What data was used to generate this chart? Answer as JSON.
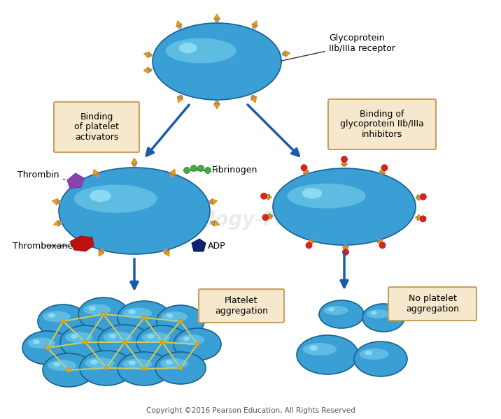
{
  "bg_color": "#ffffff",
  "copyright": "Copyright ©2016 Pearson Education, All Rights Reserved",
  "platelet_color_light": "#5bbee8",
  "platelet_color_mid": "#3a9fd4",
  "platelet_edge": "#2a7aad",
  "receptor_color": "#e8a020",
  "receptor_edge": "#c07010",
  "arrow_color": "#1a5aaa",
  "box_bg": "#f5e8cc",
  "box_edge": "#c8a060",
  "fibrinogen_color": "#44aa44",
  "thrombin_color": "#9955bb",
  "thromboxane_color": "#cc2222",
  "adp_color": "#223388",
  "inhibitor_color": "#dd2222",
  "fibrin_color": "#e8d040",
  "label_fontsize": 9,
  "box1_text": "Binding\nof platelet\nactivators",
  "box2_text": "Binding of\nglycoprotein IIb/IIIa\ninhibitors",
  "label_glycoprotein": "Glycoprotein\nIIb/IIIa receptor",
  "label_thrombin": "Thrombin",
  "label_fibrinogen": "Fibrinogen",
  "label_thromboxane": "Thromboxane",
  "label_adp": "ADP",
  "label_aggregation": "Platelet\naggregation",
  "label_no_aggregation": "No platelet\naggregation"
}
